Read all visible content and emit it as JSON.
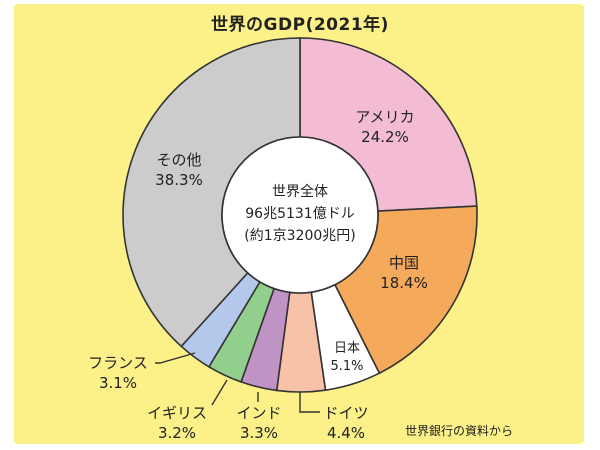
{
  "chart_data": {
    "type": "pie",
    "title": "世界のGDP(2021年)",
    "center_label": [
      "世界全体",
      "96兆5131億ドル",
      "(約1京3200兆円)"
    ],
    "slices": [
      {
        "name": "アメリカ",
        "value": 24.2,
        "display": "24.2%",
        "color": "#f4bcd4"
      },
      {
        "name": "中国",
        "value": 18.4,
        "display": "18.4%",
        "color": "#f5a95a"
      },
      {
        "name": "日本",
        "value": 5.1,
        "display": "5.1%",
        "color": "#ffffff"
      },
      {
        "name": "ドイツ",
        "value": 4.4,
        "display": "4.4%",
        "color": "#f7c2a8"
      },
      {
        "name": "インド",
        "value": 3.3,
        "display": "3.3%",
        "color": "#bf93c4"
      },
      {
        "name": "イギリス",
        "value": 3.2,
        "display": "3.2%",
        "color": "#92cf8c"
      },
      {
        "name": "フランス",
        "value": 3.1,
        "display": "3.1%",
        "color": "#b3c8ea"
      },
      {
        "name": "その他",
        "value": 38.3,
        "display": "38.3%",
        "color": "#cccccc"
      }
    ],
    "source": "世界銀行の資料から"
  }
}
